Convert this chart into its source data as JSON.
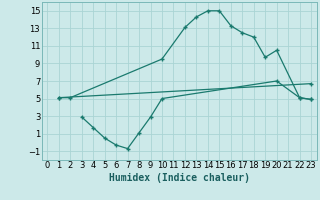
{
  "bg_color": "#cce9e9",
  "line_color": "#1a7a6e",
  "grid_color": "#aad4d4",
  "xlabel": "Humidex (Indice chaleur)",
  "xlim": [
    -0.5,
    23.5
  ],
  "ylim": [
    -2,
    16
  ],
  "xticks": [
    0,
    1,
    2,
    3,
    4,
    5,
    6,
    7,
    8,
    9,
    10,
    11,
    12,
    13,
    14,
    15,
    16,
    17,
    18,
    19,
    20,
    21,
    22,
    23
  ],
  "yticks": [
    -1,
    1,
    3,
    5,
    7,
    9,
    11,
    13,
    15
  ],
  "line1_x": [
    1,
    2,
    10,
    12,
    13,
    14,
    15,
    16,
    17,
    18,
    19,
    20,
    22,
    23
  ],
  "line1_y": [
    5.1,
    5.1,
    9.5,
    13.1,
    14.3,
    15.0,
    15.0,
    13.3,
    12.5,
    12.0,
    9.7,
    10.5,
    5.1,
    4.9
  ],
  "line2_x": [
    1,
    23
  ],
  "line2_y": [
    5.1,
    6.7
  ],
  "line3_x": [
    3,
    4,
    5,
    6,
    7,
    8,
    9,
    10,
    20,
    22,
    23
  ],
  "line3_y": [
    2.9,
    1.7,
    0.5,
    -0.3,
    -0.7,
    1.1,
    2.9,
    5.0,
    7.0,
    5.1,
    4.9
  ],
  "marker": "+",
  "markersize": 3.5,
  "linewidth": 0.9,
  "xlabel_fontsize": 7,
  "tick_fontsize": 6
}
